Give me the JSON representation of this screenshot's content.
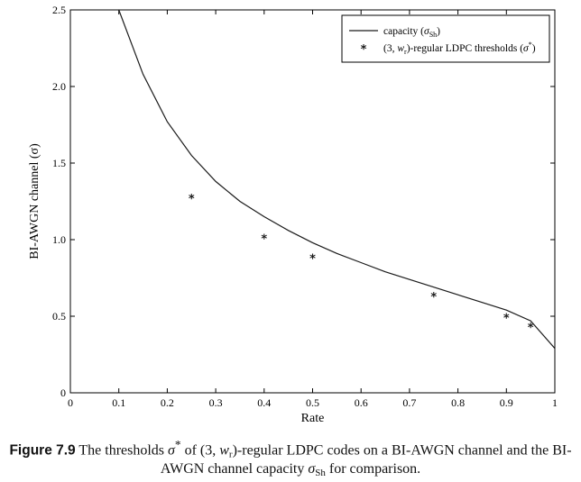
{
  "chart_data": {
    "type": "line",
    "xlabel": "Rate",
    "ylabel": "BI-AWGN channel (σ)",
    "xlim": [
      0,
      1
    ],
    "ylim": [
      0,
      2.5
    ],
    "x_ticks": [
      0,
      0.1,
      0.2,
      0.3,
      0.4,
      0.5,
      0.6,
      0.7,
      0.8,
      0.9,
      1
    ],
    "x_tick_labels": [
      "0",
      "0.1",
      "0.2",
      "0.3",
      "0.4",
      "0.5",
      "0.6",
      "0.7",
      "0.8",
      "0.9",
      "1"
    ],
    "y_ticks": [
      0,
      0.5,
      1.0,
      1.5,
      2.0,
      2.5
    ],
    "y_tick_labels": [
      "0",
      "0.5",
      "1.0",
      "1.5",
      "2.0",
      "2.5"
    ],
    "grid": false,
    "legend_position": "top-right",
    "series": [
      {
        "name": "capacity (σSh)",
        "style": "line",
        "x": [
          0.1,
          0.15,
          0.2,
          0.25,
          0.3,
          0.35,
          0.4,
          0.45,
          0.5,
          0.55,
          0.6,
          0.65,
          0.7,
          0.75,
          0.8,
          0.85,
          0.9,
          0.95,
          1.0
        ],
        "y": [
          2.5,
          2.08,
          1.77,
          1.55,
          1.38,
          1.25,
          1.15,
          1.06,
          0.98,
          0.91,
          0.85,
          0.79,
          0.74,
          0.69,
          0.64,
          0.59,
          0.54,
          0.47,
          0.29
        ]
      },
      {
        "name": "(3, wr)-regular LDPC thresholds (σ*)",
        "style": "marker",
        "x": [
          0.25,
          0.4,
          0.5,
          0.75,
          0.9,
          0.95
        ],
        "y": [
          1.27,
          1.01,
          0.88,
          0.63,
          0.49,
          0.43
        ]
      }
    ]
  },
  "legend": {
    "capacity_prefix": "capacity (",
    "capacity_sigma": "σ",
    "capacity_sub": "Sh",
    "capacity_suffix": ")",
    "thresholds_prefix": "(3, ",
    "thresholds_w": "w",
    "thresholds_w_sub": "r",
    "thresholds_mid": ")-regular LDPC thresholds (",
    "thresholds_sigma": "σ",
    "thresholds_sup": "*",
    "thresholds_suffix": ")",
    "marker_symbol": "*"
  },
  "caption": {
    "label": "Figure 7.9",
    "t1": " The thresholds ",
    "sigma": "σ",
    "star": "*",
    "t2": " of (3, ",
    "w": "w",
    "w_sub": "r",
    "t3": ")-regular LDPC codes on a BI-AWGN channel and the BI-AWGN channel capacity ",
    "sigma2": "σ",
    "sh_sub": "Sh",
    "t4": " for comparison."
  },
  "colors": {
    "axis": "#000000",
    "line": "#1a1a1a",
    "marker": "#1a1a1a",
    "background": "#ffffff"
  }
}
